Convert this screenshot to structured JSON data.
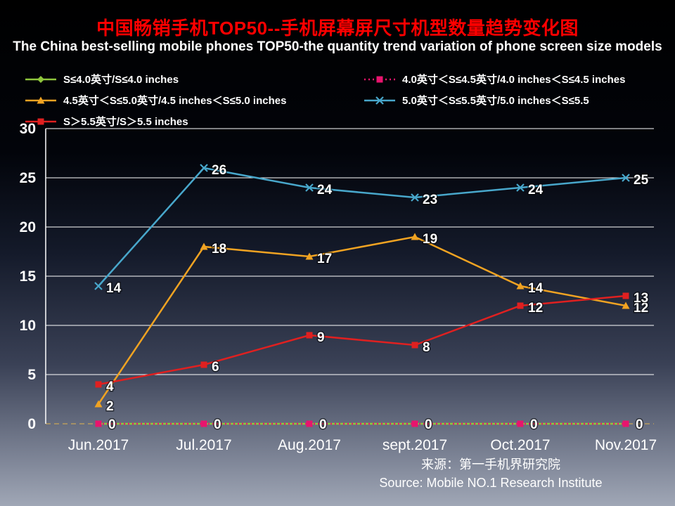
{
  "header": {
    "title": "中国畅销手机TOP50--手机屏幕屏尺寸机型数量趋势变化图",
    "subtitle": "The China best-selling mobile phones TOP50-the quantity trend variation of phone screen size models"
  },
  "source": {
    "line1": "来源：第一手机界研究院",
    "line2": "Source: Mobile NO.1 Research Institute"
  },
  "colors": {
    "title_red": "#ff0000",
    "text": "#ffffff",
    "gridline": "#ffffff",
    "baseline_dashed": "#b89b5e"
  },
  "chart_data": {
    "type": "line",
    "title": "中国畅销手机TOP50--手机屏幕屏尺寸机型数量趋势变化图",
    "subtitle": "The China best-selling mobile phones TOP50-the quantity trend variation of phone screen size models",
    "categories": [
      "Jun.2017",
      "Jul.2017",
      "Aug.2017",
      "sept.2017",
      "Oct.2017",
      "Nov.2017"
    ],
    "ylim": [
      0,
      30
    ],
    "ytick_step": 5,
    "grid": true,
    "legend_position": "top",
    "series": [
      {
        "name": "S≤4.0英寸/S≤4.0 inches",
        "marker": "diamond",
        "color": "#8fc63d",
        "dash": "solid",
        "show_labels": false,
        "label_offset": [
          12,
          8
        ],
        "values": [
          0,
          0,
          0,
          0,
          0,
          0
        ]
      },
      {
        "name": "4.0英寸＜S≤4.5英寸/4.0 inches＜S≤4.5 inches",
        "marker": "square",
        "color": "#e8146e",
        "dash": "dotted",
        "show_labels": true,
        "label_offset": [
          14,
          7
        ],
        "values": [
          0,
          0,
          0,
          0,
          0,
          0
        ]
      },
      {
        "name": "4.5英寸＜S≤5.0英寸/4.5 inches＜S≤5.0 inches",
        "marker": "triangle",
        "color": "#f0a322",
        "dash": "solid",
        "show_labels": true,
        "label_offset": [
          11,
          9
        ],
        "values": [
          2,
          18,
          17,
          19,
          14,
          12
        ]
      },
      {
        "name": "5.0英寸＜S≤5.5英寸/5.0 inches＜S≤5.5",
        "marker": "x",
        "color": "#48a7cb",
        "dash": "solid",
        "show_labels": true,
        "label_offset": [
          11,
          9
        ],
        "values": [
          14,
          26,
          24,
          23,
          24,
          25
        ]
      },
      {
        "name": "S＞5.5英寸/S＞5.5 inches",
        "marker": "square",
        "color": "#e02020",
        "dash": "solid",
        "show_labels": true,
        "label_offset": [
          11,
          9
        ],
        "values": [
          4,
          6,
          9,
          8,
          12,
          13
        ]
      }
    ]
  }
}
